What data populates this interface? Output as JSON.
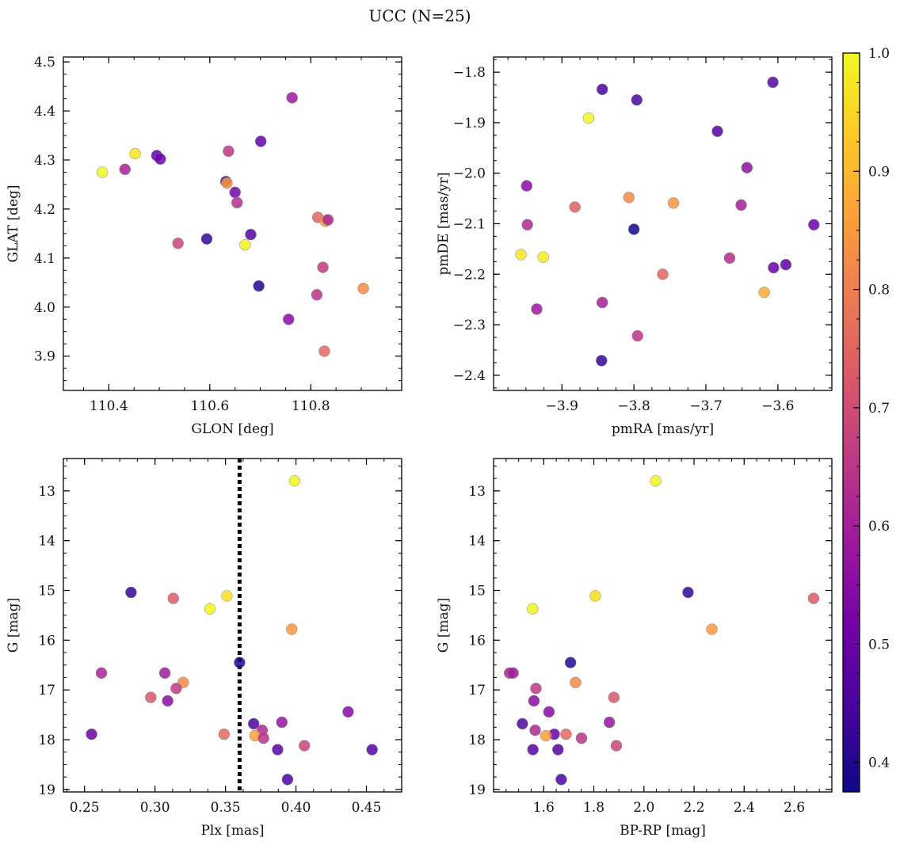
{
  "title": "UCC (N=25)",
  "colormap": {
    "name": "plasma",
    "range": [
      0.375,
      1.0
    ],
    "ticks": [
      0.4,
      0.5,
      0.6,
      0.7,
      0.8,
      0.9,
      1.0
    ],
    "tick_labels": [
      "0.4",
      "0.5",
      "0.6",
      "0.7",
      "0.8",
      "0.9",
      "1.0"
    ],
    "stops": [
      "#0d0887",
      "#46039f",
      "#7201a8",
      "#9c179e",
      "#bd3786",
      "#d8576b",
      "#ed7953",
      "#fb9f3a",
      "#fdca26",
      "#f0f921"
    ]
  },
  "chart_data": [
    {
      "id": "glon_glat",
      "type": "scatter",
      "title": "",
      "xlabel": "GLON [deg]",
      "ylabel": "GLAT [deg]",
      "xlim": [
        110.31,
        110.98
      ],
      "ylim": [
        3.83,
        4.51
      ],
      "y_inverted": false,
      "xticks": [
        110.4,
        110.6,
        110.8
      ],
      "xtick_labels": [
        "110.4",
        "110.6",
        "110.8"
      ],
      "yticks": [
        3.9,
        4.0,
        4.1,
        4.2,
        4.3,
        4.4,
        4.5
      ],
      "ytick_labels": [
        "3.9",
        "4.0",
        "4.1",
        "4.2",
        "4.3",
        "4.4",
        "4.5"
      ],
      "x_minor_step": 0.05,
      "y_minor_step": 0.025,
      "points": [
        {
          "x": 110.387,
          "y": 4.275,
          "c": 1.0
        },
        {
          "x": 110.432,
          "y": 4.281,
          "c": 0.6
        },
        {
          "x": 110.452,
          "y": 4.313,
          "c": 0.97
        },
        {
          "x": 110.495,
          "y": 4.309,
          "c": 0.48
        },
        {
          "x": 110.502,
          "y": 4.302,
          "c": 0.5
        },
        {
          "x": 110.537,
          "y": 4.13,
          "c": 0.68
        },
        {
          "x": 110.594,
          "y": 4.139,
          "c": 0.42
        },
        {
          "x": 110.632,
          "y": 4.256,
          "c": 0.43
        },
        {
          "x": 110.634,
          "y": 4.253,
          "c": 0.85
        },
        {
          "x": 110.637,
          "y": 4.318,
          "c": 0.65
        },
        {
          "x": 110.65,
          "y": 4.234,
          "c": 0.52
        },
        {
          "x": 110.654,
          "y": 4.213,
          "c": 0.63
        },
        {
          "x": 110.67,
          "y": 4.127,
          "c": 0.99
        },
        {
          "x": 110.681,
          "y": 4.148,
          "c": 0.47
        },
        {
          "x": 110.697,
          "y": 4.043,
          "c": 0.4
        },
        {
          "x": 110.701,
          "y": 4.338,
          "c": 0.48
        },
        {
          "x": 110.756,
          "y": 3.975,
          "c": 0.55
        },
        {
          "x": 110.763,
          "y": 4.427,
          "c": 0.58
        },
        {
          "x": 110.812,
          "y": 4.025,
          "c": 0.64
        },
        {
          "x": 110.814,
          "y": 4.183,
          "c": 0.75
        },
        {
          "x": 110.824,
          "y": 4.081,
          "c": 0.66
        },
        {
          "x": 110.827,
          "y": 3.91,
          "c": 0.76
        },
        {
          "x": 110.829,
          "y": 4.175,
          "c": 0.86
        },
        {
          "x": 110.834,
          "y": 4.178,
          "c": 0.61
        },
        {
          "x": 110.904,
          "y": 4.038,
          "c": 0.82
        }
      ]
    },
    {
      "id": "pmra_pmde",
      "type": "scatter",
      "title": "",
      "xlabel": "pmRA [mas/yr]",
      "ylabel": "pmDE [mas/yr]",
      "xlim": [
        -3.995,
        -3.525
      ],
      "ylim": [
        -2.43,
        -1.77
      ],
      "y_inverted": false,
      "xticks": [
        -3.9,
        -3.8,
        -3.7,
        -3.6
      ],
      "xtick_labels": [
        "−3.9",
        "−3.8",
        "−3.7",
        "−3.6"
      ],
      "yticks": [
        -2.4,
        -2.3,
        -2.2,
        -2.1,
        -2.0,
        -1.9,
        -1.8
      ],
      "ytick_labels": [
        "−2.4",
        "−2.3",
        "−2.2",
        "−2.1",
        "−2.0",
        "−1.9",
        "−1.8"
      ],
      "x_minor_step": 0.025,
      "y_minor_step": 0.025,
      "points": [
        {
          "x": -3.957,
          "y": -2.161,
          "c": 0.97
        },
        {
          "x": -3.949,
          "y": -2.025,
          "c": 0.55
        },
        {
          "x": -3.948,
          "y": -2.102,
          "c": 0.62
        },
        {
          "x": -3.935,
          "y": -2.269,
          "c": 0.58
        },
        {
          "x": -3.926,
          "y": -2.166,
          "c": 0.98
        },
        {
          "x": -3.882,
          "y": -2.067,
          "c": 0.74
        },
        {
          "x": -3.863,
          "y": -1.891,
          "c": 0.99
        },
        {
          "x": -3.845,
          "y": -2.371,
          "c": 0.42
        },
        {
          "x": -3.844,
          "y": -1.834,
          "c": 0.45
        },
        {
          "x": -3.844,
          "y": -2.256,
          "c": 0.6
        },
        {
          "x": -3.807,
          "y": -2.048,
          "c": 0.82
        },
        {
          "x": -3.8,
          "y": -2.111,
          "c": 0.38
        },
        {
          "x": -3.796,
          "y": -1.855,
          "c": 0.45
        },
        {
          "x": -3.795,
          "y": -2.322,
          "c": 0.64
        },
        {
          "x": -3.76,
          "y": -2.2,
          "c": 0.75
        },
        {
          "x": -3.745,
          "y": -2.059,
          "c": 0.84
        },
        {
          "x": -3.684,
          "y": -1.917,
          "c": 0.46
        },
        {
          "x": -3.667,
          "y": -2.168,
          "c": 0.63
        },
        {
          "x": -3.651,
          "y": -2.063,
          "c": 0.6
        },
        {
          "x": -3.643,
          "y": -1.989,
          "c": 0.56
        },
        {
          "x": -3.619,
          "y": -2.236,
          "c": 0.88
        },
        {
          "x": -3.607,
          "y": -1.82,
          "c": 0.47
        },
        {
          "x": -3.606,
          "y": -2.187,
          "c": 0.5
        },
        {
          "x": -3.589,
          "y": -2.181,
          "c": 0.48
        },
        {
          "x": -3.55,
          "y": -2.102,
          "c": 0.5
        }
      ]
    },
    {
      "id": "plx_g",
      "type": "scatter",
      "title": "",
      "xlabel": "Plx [mas]",
      "ylabel": "G [mag]",
      "xlim": [
        0.235,
        0.475
      ],
      "ylim": [
        19.05,
        12.35
      ],
      "y_inverted": true,
      "xticks": [
        0.25,
        0.3,
        0.35,
        0.4,
        0.45
      ],
      "xtick_labels": [
        "0.25",
        "0.30",
        "0.35",
        "0.40",
        "0.45"
      ],
      "yticks": [
        13,
        14,
        15,
        16,
        17,
        18,
        19
      ],
      "ytick_labels": [
        "13",
        "14",
        "15",
        "16",
        "17",
        "18",
        "19"
      ],
      "x_minor_step": 0.0125,
      "y_minor_step": 0.25,
      "vline": {
        "x": 0.36,
        "style": "dotted",
        "color": "#000000"
      },
      "points": [
        {
          "x": 0.399,
          "y": 12.8,
          "c": 0.99
        },
        {
          "x": 0.283,
          "y": 15.04,
          "c": 0.42
        },
        {
          "x": 0.313,
          "y": 15.16,
          "c": 0.73
        },
        {
          "x": 0.351,
          "y": 15.11,
          "c": 0.96
        },
        {
          "x": 0.339,
          "y": 15.37,
          "c": 0.99
        },
        {
          "x": 0.397,
          "y": 15.78,
          "c": 0.85
        },
        {
          "x": 0.36,
          "y": 16.45,
          "c": 0.4
        },
        {
          "x": 0.262,
          "y": 16.66,
          "c": 0.61
        },
        {
          "x": 0.307,
          "y": 16.66,
          "c": 0.59
        },
        {
          "x": 0.32,
          "y": 16.85,
          "c": 0.82
        },
        {
          "x": 0.315,
          "y": 16.97,
          "c": 0.66
        },
        {
          "x": 0.297,
          "y": 17.15,
          "c": 0.72
        },
        {
          "x": 0.309,
          "y": 17.22,
          "c": 0.55
        },
        {
          "x": 0.437,
          "y": 17.44,
          "c": 0.54
        },
        {
          "x": 0.37,
          "y": 17.68,
          "c": 0.45
        },
        {
          "x": 0.39,
          "y": 17.65,
          "c": 0.57
        },
        {
          "x": 0.376,
          "y": 17.81,
          "c": 0.62
        },
        {
          "x": 0.255,
          "y": 17.89,
          "c": 0.5
        },
        {
          "x": 0.349,
          "y": 17.89,
          "c": 0.76
        },
        {
          "x": 0.371,
          "y": 17.92,
          "c": 0.86
        },
        {
          "x": 0.377,
          "y": 17.97,
          "c": 0.64
        },
        {
          "x": 0.406,
          "y": 18.12,
          "c": 0.68
        },
        {
          "x": 0.387,
          "y": 18.2,
          "c": 0.47
        },
        {
          "x": 0.454,
          "y": 18.2,
          "c": 0.47
        },
        {
          "x": 0.394,
          "y": 18.8,
          "c": 0.45
        }
      ]
    },
    {
      "id": "bprp_g",
      "type": "scatter",
      "title": "",
      "xlabel": "BP-RP [mag]",
      "ylabel": "G [mag]",
      "xlim": [
        1.4,
        2.75
      ],
      "ylim": [
        19.05,
        12.35
      ],
      "y_inverted": true,
      "xticks": [
        1.6,
        1.8,
        2.0,
        2.2,
        2.4,
        2.6
      ],
      "xtick_labels": [
        "1.6",
        "1.8",
        "2.0",
        "2.2",
        "2.4",
        "2.6"
      ],
      "yticks": [
        13,
        14,
        15,
        16,
        17,
        18,
        19
      ],
      "ytick_labels": [
        "13",
        "14",
        "15",
        "16",
        "17",
        "18",
        "19"
      ],
      "x_minor_step": 0.05,
      "y_minor_step": 0.25,
      "points": [
        {
          "x": 2.047,
          "y": 12.8,
          "c": 0.99
        },
        {
          "x": 2.176,
          "y": 15.04,
          "c": 0.42
        },
        {
          "x": 2.677,
          "y": 15.16,
          "c": 0.73
        },
        {
          "x": 1.806,
          "y": 15.11,
          "c": 0.96
        },
        {
          "x": 1.556,
          "y": 15.37,
          "c": 0.99
        },
        {
          "x": 2.271,
          "y": 15.78,
          "c": 0.85
        },
        {
          "x": 1.707,
          "y": 16.45,
          "c": 0.4
        },
        {
          "x": 1.464,
          "y": 16.66,
          "c": 0.61
        },
        {
          "x": 1.478,
          "y": 16.66,
          "c": 0.59
        },
        {
          "x": 1.727,
          "y": 16.85,
          "c": 0.82
        },
        {
          "x": 1.569,
          "y": 16.97,
          "c": 0.66
        },
        {
          "x": 1.88,
          "y": 17.15,
          "c": 0.72
        },
        {
          "x": 1.561,
          "y": 17.22,
          "c": 0.55
        },
        {
          "x": 1.621,
          "y": 17.44,
          "c": 0.54
        },
        {
          "x": 1.515,
          "y": 17.68,
          "c": 0.45
        },
        {
          "x": 1.862,
          "y": 17.65,
          "c": 0.57
        },
        {
          "x": 1.566,
          "y": 17.81,
          "c": 0.62
        },
        {
          "x": 1.642,
          "y": 17.89,
          "c": 0.5
        },
        {
          "x": 1.689,
          "y": 17.89,
          "c": 0.76
        },
        {
          "x": 1.609,
          "y": 17.92,
          "c": 0.86
        },
        {
          "x": 1.751,
          "y": 17.97,
          "c": 0.64
        },
        {
          "x": 1.89,
          "y": 18.12,
          "c": 0.68
        },
        {
          "x": 1.557,
          "y": 18.2,
          "c": 0.47
        },
        {
          "x": 1.657,
          "y": 18.2,
          "c": 0.47
        },
        {
          "x": 1.67,
          "y": 18.8,
          "c": 0.45
        }
      ]
    }
  ]
}
